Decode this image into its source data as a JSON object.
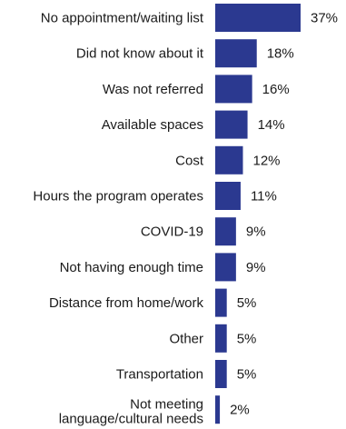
{
  "chart_data": {
    "type": "bar",
    "orientation": "horizontal",
    "categories": [
      [
        "No appointment/waiting list"
      ],
      [
        "Did not know about it"
      ],
      [
        "Was not referred"
      ],
      [
        "Available spaces"
      ],
      [
        "Cost"
      ],
      [
        "Hours the program operates"
      ],
      [
        "COVID-19"
      ],
      [
        "Not having enough time"
      ],
      [
        "Distance from home/work"
      ],
      [
        "Other"
      ],
      [
        "Transportation"
      ],
      [
        "Not meeting",
        "language/cultural needs"
      ]
    ],
    "values": [
      37,
      18,
      16,
      14,
      12,
      11,
      9,
      9,
      5,
      5,
      5,
      2
    ],
    "value_labels": [
      "37%",
      "18%",
      "16%",
      "14%",
      "12%",
      "11%",
      "9%",
      "9%",
      "5%",
      "5%",
      "5%",
      "2%"
    ],
    "xlim": [
      0,
      37
    ],
    "bar_color": "#2b3990",
    "title": "",
    "xlabel": "",
    "ylabel": "",
    "grid": false,
    "legend": "none"
  }
}
